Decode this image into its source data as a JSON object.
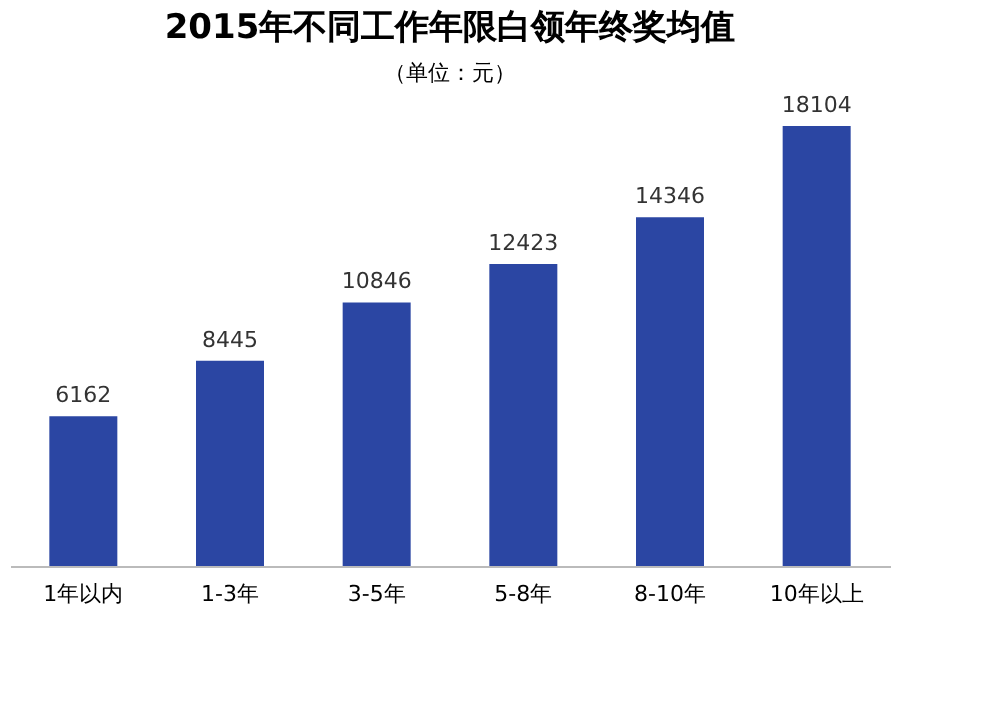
{
  "chart_data": {
    "type": "bar",
    "title": "2015年不同工作年限白领年终奖均值",
    "subtitle": "（单位：元）",
    "categories": [
      "1年以内",
      "1-3年",
      "3-5年",
      "5-8年",
      "8-10年",
      "10年以上"
    ],
    "values": [
      6162,
      8445,
      10846,
      12423,
      14346,
      18104
    ],
    "color": "#2b46a3",
    "data_labels": true,
    "grid": false
  }
}
